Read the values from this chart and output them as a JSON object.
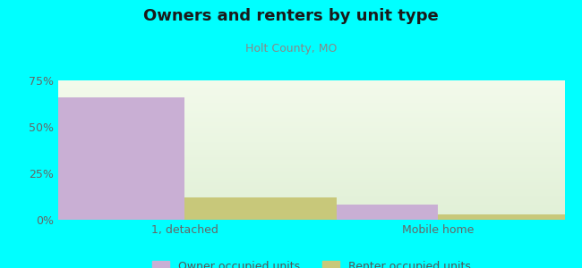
{
  "title": "Owners and renters by unit type",
  "subtitle": "Holt County, MO",
  "categories": [
    "1, detached",
    "Mobile home"
  ],
  "owner_values": [
    66,
    8
  ],
  "renter_values": [
    12,
    3
  ],
  "owner_color": "#c9afd4",
  "renter_color": "#c8c87a",
  "ylim": [
    0,
    75
  ],
  "yticks": [
    0,
    25,
    50,
    75
  ],
  "ytick_labels": [
    "0%",
    "25%",
    "50%",
    "75%"
  ],
  "bar_width": 0.3,
  "background_outer": "#00ffff",
  "legend_owner": "Owner occupied units",
  "legend_renter": "Renter occupied units",
  "title_fontsize": 13,
  "subtitle_fontsize": 9,
  "tick_fontsize": 9,
  "legend_fontsize": 9
}
